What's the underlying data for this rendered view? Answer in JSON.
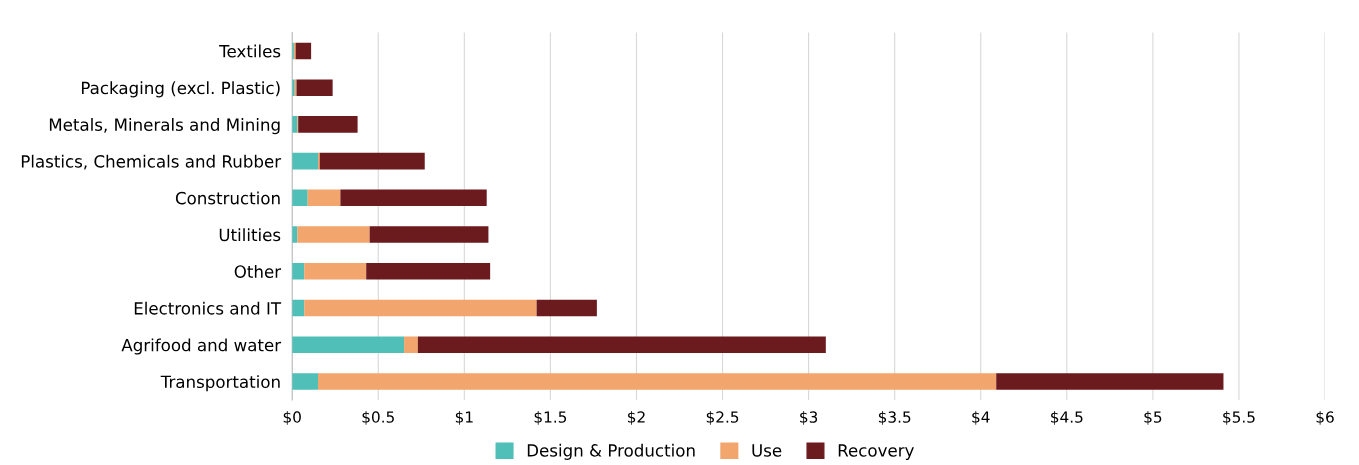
{
  "chart_data": {
    "type": "bar",
    "orientation": "horizontal",
    "stacked": true,
    "categories": [
      "Textiles",
      "Packaging (excl. Plastic)",
      "Metals, Minerals and Mining",
      "Plastics, Chemicals and Rubber",
      "Construction",
      "Utilities",
      "Other",
      "Electronics and IT",
      "Agrifood and water",
      "Transportation"
    ],
    "series": [
      {
        "name": "Design & Production",
        "color": "#4fbfb8",
        "values": [
          0.01,
          0.015,
          0.03,
          0.15,
          0.09,
          0.03,
          0.07,
          0.07,
          0.65,
          0.15
        ]
      },
      {
        "name": "Use",
        "color": "#f2a56c",
        "values": [
          0.01,
          0.01,
          0.005,
          0.01,
          0.19,
          0.42,
          0.36,
          1.35,
          0.08,
          3.94
        ]
      },
      {
        "name": "Recovery",
        "color": "#6b1a1e",
        "values": [
          0.09,
          0.21,
          0.345,
          0.61,
          0.85,
          0.69,
          0.72,
          0.35,
          2.37,
          1.32
        ]
      }
    ],
    "xlim": [
      0,
      6
    ],
    "xticks": [
      {
        "value": 0,
        "label": "$0"
      },
      {
        "value": 0.5,
        "label": "$0.5"
      },
      {
        "value": 1,
        "label": "$1"
      },
      {
        "value": 1.5,
        "label": "$1.5"
      },
      {
        "value": 2,
        "label": "$2"
      },
      {
        "value": 2.5,
        "label": "$2.5"
      },
      {
        "value": 3,
        "label": "$3"
      },
      {
        "value": 3.5,
        "label": "$3.5"
      },
      {
        "value": 4,
        "label": "$4"
      },
      {
        "value": 4.5,
        "label": "$4.5"
      },
      {
        "value": 5,
        "label": "$5"
      },
      {
        "value": 5.5,
        "label": "$5.5"
      },
      {
        "value": 6,
        "label": "$6"
      }
    ],
    "grid": "x",
    "legend": "bottom"
  }
}
